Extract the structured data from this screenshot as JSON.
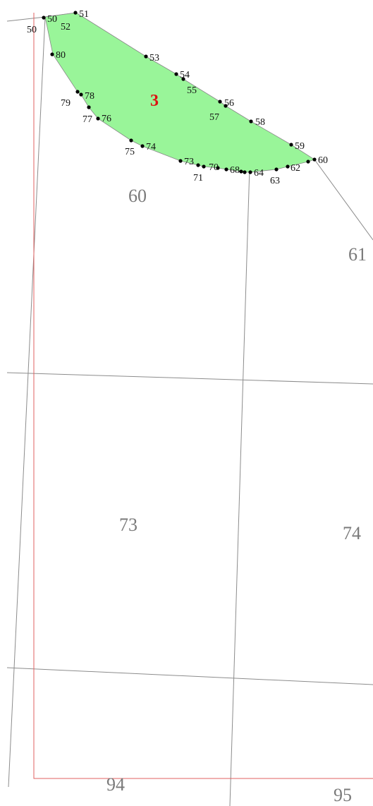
{
  "colors": {
    "plot_fill": "#99f599",
    "plot_label": "#dd1111",
    "boundary_line": "#e06060",
    "parcel_line": "#8c8c8c",
    "point": "#000000"
  },
  "plot": {
    "number": "3"
  },
  "point_labels": [
    "50",
    "50",
    "51",
    "52",
    "53",
    "54",
    "55",
    "56",
    "57",
    "58",
    "59",
    "60",
    "62",
    "63",
    "64",
    "68",
    "70",
    "71",
    "73",
    "74",
    "75",
    "76",
    "77",
    "78",
    "79",
    "80"
  ],
  "parcel_labels": [
    "60",
    "61",
    "73",
    "74",
    "94",
    "95"
  ]
}
